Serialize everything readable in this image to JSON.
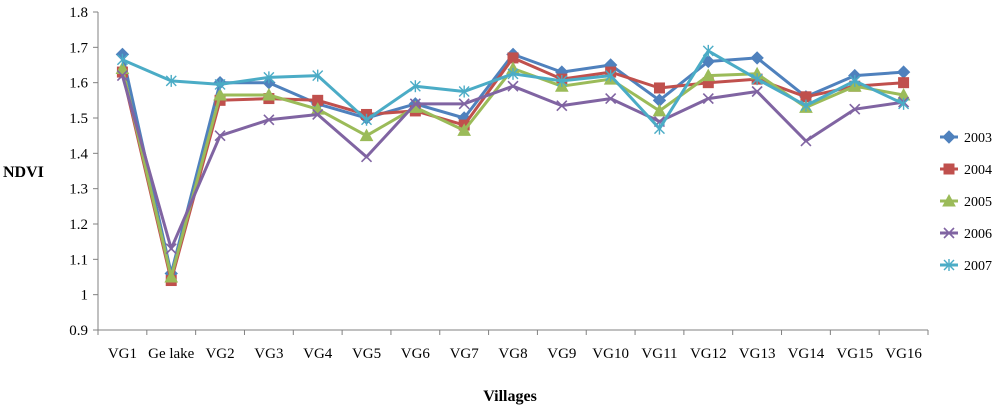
{
  "chart_data": {
    "type": "line",
    "title": "",
    "xlabel": "Villages",
    "ylabel": "NDVI",
    "ylim": [
      0.9,
      1.8
    ],
    "yticks": [
      0.9,
      1,
      1.1,
      1.2,
      1.3,
      1.4,
      1.5,
      1.6,
      1.7,
      1.8
    ],
    "ytick_labels": [
      "0.9",
      "1",
      "1.1",
      "1.2",
      "1.3",
      "1.4",
      "1.5",
      "1.6",
      "1.7",
      "1.8"
    ],
    "grid": false,
    "legend_position": "right",
    "categories": [
      "VG1",
      "Ge lake",
      "VG2",
      "VG3",
      "VG4",
      "VG5",
      "VG6",
      "VG7",
      "VG8",
      "VG9",
      "VG10",
      "VG11",
      "VG12",
      "VG13",
      "VG14",
      "VG15",
      "VG16"
    ],
    "series": [
      {
        "name": "2003",
        "color": "#4F81BD",
        "marker": "diamond",
        "values": [
          1.68,
          1.06,
          1.6,
          1.6,
          1.54,
          1.5,
          1.54,
          1.5,
          1.68,
          1.63,
          1.65,
          1.55,
          1.66,
          1.67,
          1.56,
          1.62,
          1.63
        ]
      },
      {
        "name": "2004",
        "color": "#C0504D",
        "marker": "square",
        "values": [
          1.63,
          1.04,
          1.55,
          1.555,
          1.55,
          1.51,
          1.52,
          1.48,
          1.67,
          1.61,
          1.63,
          1.585,
          1.6,
          1.61,
          1.56,
          1.59,
          1.6
        ]
      },
      {
        "name": "2005",
        "color": "#9BBB59",
        "marker": "triangle",
        "values": [
          1.64,
          1.05,
          1.565,
          1.565,
          1.525,
          1.45,
          1.53,
          1.465,
          1.64,
          1.59,
          1.61,
          1.52,
          1.62,
          1.625,
          1.53,
          1.59,
          1.565
        ]
      },
      {
        "name": "2006",
        "color": "#8064A2",
        "marker": "x",
        "values": [
          1.62,
          1.13,
          1.45,
          1.495,
          1.51,
          1.39,
          1.54,
          1.54,
          1.59,
          1.535,
          1.555,
          1.49,
          1.555,
          1.575,
          1.435,
          1.525,
          1.545
        ]
      },
      {
        "name": "2007",
        "color": "#4BACC6",
        "marker": "star",
        "values": [
          1.665,
          1.605,
          1.595,
          1.615,
          1.62,
          1.495,
          1.59,
          1.575,
          1.625,
          1.605,
          1.62,
          1.47,
          1.69,
          1.61,
          1.535,
          1.605,
          1.54
        ]
      }
    ]
  }
}
